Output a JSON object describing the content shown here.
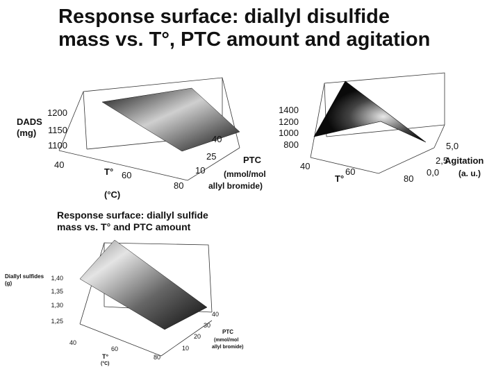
{
  "page": {
    "title_line1": "Response surface: diallyl disulfide",
    "title_line2": "mass vs. T°, PTC amount and agitation",
    "subtitle_line1": "Response surface: diallyl sulfide",
    "subtitle_line2": "mass vs. T° and PTC amount"
  },
  "colors": {
    "axis": "#333333",
    "surface_dark": "#111111",
    "surface_light": "#d8d8d8"
  },
  "chart_data": [
    {
      "type": "surface3d",
      "zlabel_line1": "DADS",
      "zlabel_line2": "(mg)",
      "x_label": "T°",
      "x_unit": "(°C)",
      "y_label_line1": "PTC",
      "y_label_line2": "(mmol/mol",
      "y_label_line3": "allyl bromide)",
      "x_ticks": [
        "40",
        "60",
        "80"
      ],
      "y_ticks": [
        "10",
        "25",
        "40"
      ],
      "z_ticks": [
        "1100",
        "1150",
        "1200"
      ],
      "x_range": [
        40,
        80
      ],
      "y_range": [
        10,
        40
      ],
      "z_range": [
        1075,
        1225
      ],
      "surface_corners": {
        "x40_y10": 1205,
        "x40_y40": 1210,
        "x80_y10": 1110,
        "x80_y40": 1115
      }
    },
    {
      "type": "surface3d",
      "x_label": "T°",
      "y_label_line1": "Agitation",
      "y_label_line2": "(a. u.)",
      "x_ticks": [
        "40",
        "60",
        "80"
      ],
      "y_ticks": [
        "0,0",
        "2,5",
        "5,0"
      ],
      "z_ticks": [
        "800",
        "1000",
        "1200",
        "1400"
      ],
      "x_range": [
        40,
        80
      ],
      "y_range": [
        0,
        5
      ],
      "z_range": [
        700,
        1500
      ],
      "surface_points": {
        "peak": 1460,
        "x40_y0": 800,
        "x80_y0": 800,
        "x80_y5": 950,
        "x60_y2_5": 1050
      }
    },
    {
      "type": "surface3d",
      "zlabel": "Diallyl sulfides",
      "zunit": "(g)",
      "x_label": "T°",
      "x_unit": "(°C)",
      "y_label_line1": "PTC",
      "y_label_line2": "(mmol/mol",
      "y_label_line3": "allyl bromide)",
      "x_ticks": [
        "40",
        "60",
        "80"
      ],
      "y_ticks": [
        "10",
        "20",
        "30",
        "40"
      ],
      "z_ticks": [
        "1,25",
        "1,30",
        "1,35",
        "1,40"
      ],
      "x_range": [
        40,
        80
      ],
      "y_range": [
        10,
        40
      ],
      "z_range": [
        1.22,
        1.45
      ],
      "surface_corners": {
        "x40_y10": 1.4,
        "x40_y40": 1.45,
        "x80_y10": 1.25,
        "x80_y40": 1.29
      }
    }
  ]
}
